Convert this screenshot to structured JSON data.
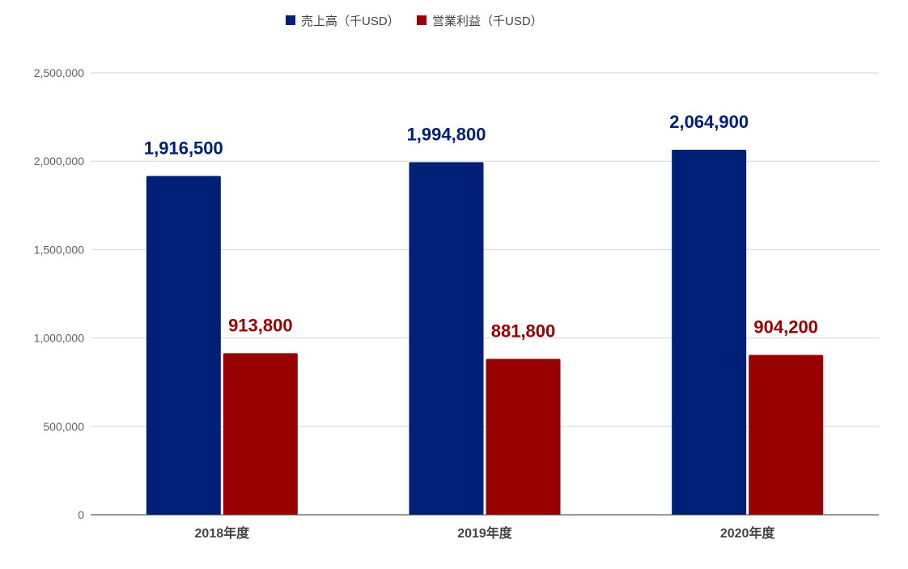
{
  "chart_data": {
    "type": "bar",
    "categories": [
      "2018年度",
      "2019年度",
      "2020年度"
    ],
    "series": [
      {
        "name": "売上高（千USD）",
        "values": [
          1916500,
          1994800,
          2064900
        ],
        "color": "#002078"
      },
      {
        "name": "営業利益（千USD）",
        "values": [
          913800,
          881800,
          904200
        ],
        "color": "#990000"
      }
    ],
    "data_labels": [
      [
        "1,916,500",
        "1,994,800",
        "2,064,900"
      ],
      [
        "913,800",
        "881,800",
        "904,200"
      ]
    ],
    "yticks": [
      "0",
      "500,000",
      "1,000,000",
      "1,500,000",
      "2,000,000",
      "2,500,000"
    ],
    "ylim": [
      0,
      2500000
    ],
    "legend_position": "top",
    "grid": true,
    "title": "",
    "xlabel": "",
    "ylabel": ""
  }
}
